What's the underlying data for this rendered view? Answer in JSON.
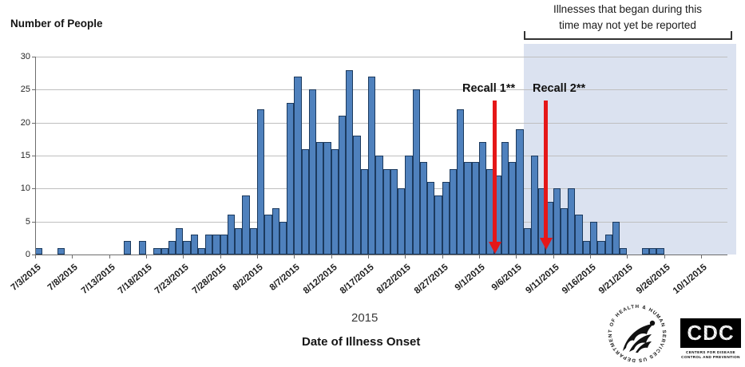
{
  "header": {
    "y_axis_title": "Number of People"
  },
  "annotations": {
    "not_reported_line1": "Illnesses that began during this",
    "not_reported_line2": "time may not yet be reported",
    "recall1_label": "Recall 1**",
    "recall2_label": "Recall 2**",
    "recall1_date": "9/4/2015",
    "recall2_date": "9/11/2015"
  },
  "x_axis": {
    "year_label": "2015",
    "title": "Date of Illness Onset",
    "tick_labels": [
      "7/3/2015",
      "7/8/2015",
      "7/13/2015",
      "7/18/2015",
      "7/23/2015",
      "7/28/2015",
      "8/2/2015",
      "8/7/2015",
      "8/12/2015",
      "8/17/2015",
      "8/22/2015",
      "8/27/2015",
      "9/1/2015",
      "9/6/2015",
      "9/11/2015",
      "9/16/2015",
      "9/21/2015",
      "9/26/2015",
      "10/1/2015"
    ]
  },
  "y_axis": {
    "ticks": [
      0,
      5,
      10,
      15,
      20,
      25,
      30
    ]
  },
  "colors": {
    "bar_fill": "#4f81bd",
    "bar_border": "#1c3a5e",
    "shade": "#dbe2f0",
    "arrow_red": "#e51718",
    "gridline": "#bfbfbf",
    "axis": "#6d6d6d"
  },
  "logos": {
    "hhs_ring_text": "DEPARTMENT OF HEALTH & HUMAN SERVICES USA",
    "cdc_acronym": "CDC",
    "cdc_caption1": "CENTERS FOR DISEASE",
    "cdc_caption2": "CONTROL AND PREVENTION"
  },
  "chart_data": {
    "type": "bar",
    "title": "",
    "xlabel": "Date of Illness Onset",
    "ylabel": "Number of People",
    "ylim": [
      0,
      30
    ],
    "grid": true,
    "shaded_region_start": "9/7/2015",
    "shaded_region_note": "Illnesses that began during this time may not yet be reported",
    "days": [
      {
        "d": "7/3/2015",
        "v": 1
      },
      {
        "d": "7/4/2015",
        "v": 0
      },
      {
        "d": "7/5/2015",
        "v": 0
      },
      {
        "d": "7/6/2015",
        "v": 1
      },
      {
        "d": "7/7/2015",
        "v": 0
      },
      {
        "d": "7/8/2015",
        "v": 0
      },
      {
        "d": "7/9/2015",
        "v": 0
      },
      {
        "d": "7/10/2015",
        "v": 0
      },
      {
        "d": "7/11/2015",
        "v": 0
      },
      {
        "d": "7/12/2015",
        "v": 0
      },
      {
        "d": "7/13/2015",
        "v": 0
      },
      {
        "d": "7/14/2015",
        "v": 0
      },
      {
        "d": "7/15/2015",
        "v": 2
      },
      {
        "d": "7/16/2015",
        "v": 0
      },
      {
        "d": "7/17/2015",
        "v": 2
      },
      {
        "d": "7/18/2015",
        "v": 0
      },
      {
        "d": "7/19/2015",
        "v": 1
      },
      {
        "d": "7/20/2015",
        "v": 1
      },
      {
        "d": "7/21/2015",
        "v": 2
      },
      {
        "d": "7/22/2015",
        "v": 4
      },
      {
        "d": "7/23/2015",
        "v": 2
      },
      {
        "d": "7/24/2015",
        "v": 3
      },
      {
        "d": "7/25/2015",
        "v": 1
      },
      {
        "d": "7/26/2015",
        "v": 3
      },
      {
        "d": "7/27/2015",
        "v": 3
      },
      {
        "d": "7/28/2015",
        "v": 3
      },
      {
        "d": "7/29/2015",
        "v": 6
      },
      {
        "d": "7/30/2015",
        "v": 4
      },
      {
        "d": "7/31/2015",
        "v": 9
      },
      {
        "d": "8/1/2015",
        "v": 4
      },
      {
        "d": "8/2/2015",
        "v": 22
      },
      {
        "d": "8/3/2015",
        "v": 6
      },
      {
        "d": "8/4/2015",
        "v": 7
      },
      {
        "d": "8/5/2015",
        "v": 5
      },
      {
        "d": "8/6/2015",
        "v": 23
      },
      {
        "d": "8/7/2015",
        "v": 27
      },
      {
        "d": "8/8/2015",
        "v": 16
      },
      {
        "d": "8/9/2015",
        "v": 25
      },
      {
        "d": "8/10/2015",
        "v": 17
      },
      {
        "d": "8/11/2015",
        "v": 17
      },
      {
        "d": "8/12/2015",
        "v": 16
      },
      {
        "d": "8/13/2015",
        "v": 21
      },
      {
        "d": "8/14/2015",
        "v": 28
      },
      {
        "d": "8/15/2015",
        "v": 18
      },
      {
        "d": "8/16/2015",
        "v": 13
      },
      {
        "d": "8/17/2015",
        "v": 27
      },
      {
        "d": "8/18/2015",
        "v": 15
      },
      {
        "d": "8/19/2015",
        "v": 13
      },
      {
        "d": "8/20/2015",
        "v": 13
      },
      {
        "d": "8/21/2015",
        "v": 10
      },
      {
        "d": "8/22/2015",
        "v": 15
      },
      {
        "d": "8/23/2015",
        "v": 25
      },
      {
        "d": "8/24/2015",
        "v": 14
      },
      {
        "d": "8/25/2015",
        "v": 11
      },
      {
        "d": "8/26/2015",
        "v": 9
      },
      {
        "d": "8/27/2015",
        "v": 11
      },
      {
        "d": "8/28/2015",
        "v": 13
      },
      {
        "d": "8/29/2015",
        "v": 22
      },
      {
        "d": "8/30/2015",
        "v": 14
      },
      {
        "d": "8/31/2015",
        "v": 14
      },
      {
        "d": "9/1/2015",
        "v": 17
      },
      {
        "d": "9/2/2015",
        "v": 13
      },
      {
        "d": "9/3/2015",
        "v": 12
      },
      {
        "d": "9/4/2015",
        "v": 17
      },
      {
        "d": "9/5/2015",
        "v": 14
      },
      {
        "d": "9/6/2015",
        "v": 19
      },
      {
        "d": "9/7/2015",
        "v": 4
      },
      {
        "d": "9/8/2015",
        "v": 15
      },
      {
        "d": "9/9/2015",
        "v": 10
      },
      {
        "d": "9/10/2015",
        "v": 8
      },
      {
        "d": "9/11/2015",
        "v": 10
      },
      {
        "d": "9/12/2015",
        "v": 7
      },
      {
        "d": "9/13/2015",
        "v": 10
      },
      {
        "d": "9/14/2015",
        "v": 6
      },
      {
        "d": "9/15/2015",
        "v": 2
      },
      {
        "d": "9/16/2015",
        "v": 5
      },
      {
        "d": "9/17/2015",
        "v": 2
      },
      {
        "d": "9/18/2015",
        "v": 3
      },
      {
        "d": "9/19/2015",
        "v": 5
      },
      {
        "d": "9/20/2015",
        "v": 1
      },
      {
        "d": "9/21/2015",
        "v": 0
      },
      {
        "d": "9/22/2015",
        "v": 0
      },
      {
        "d": "9/23/2015",
        "v": 1
      },
      {
        "d": "9/24/2015",
        "v": 1
      },
      {
        "d": "9/25/2015",
        "v": 1
      },
      {
        "d": "9/26/2015",
        "v": 0
      },
      {
        "d": "9/27/2015",
        "v": 0
      },
      {
        "d": "9/28/2015",
        "v": 0
      }
    ]
  }
}
